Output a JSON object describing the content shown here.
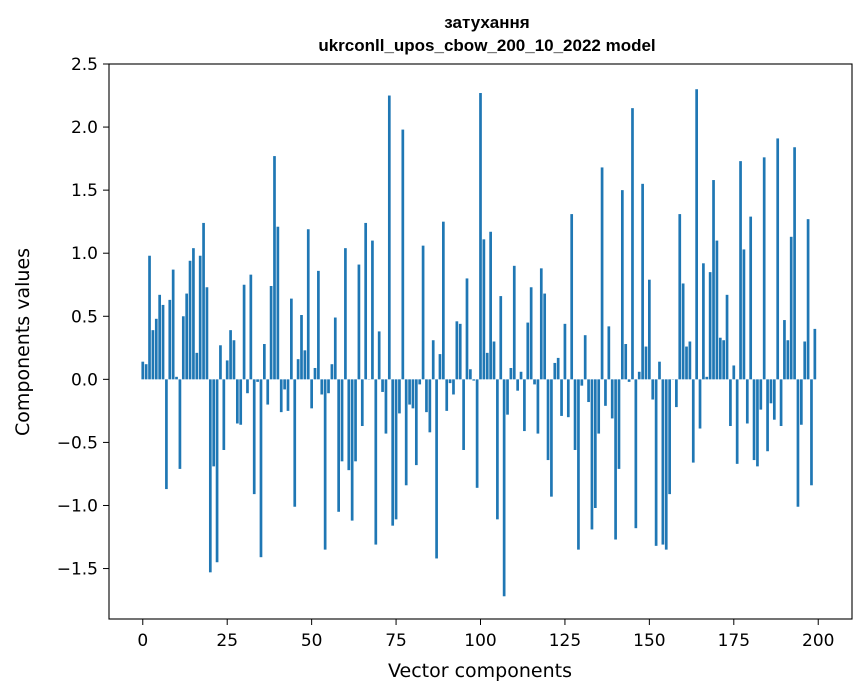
{
  "chart_data": {
    "type": "bar",
    "title": "затухання",
    "subtitle": "ukrconll_upos_cbow_200_10_2022 model",
    "xlabel": "Vector components",
    "ylabel": "Components values",
    "xlim": [
      -10,
      210
    ],
    "ylim": [
      -1.9,
      2.5
    ],
    "xticks": [
      0,
      25,
      50,
      75,
      100,
      125,
      150,
      175,
      200
    ],
    "yticks": [
      -1.5,
      -1.0,
      -0.5,
      0.0,
      0.5,
      1.0,
      1.5,
      2.0,
      2.5
    ],
    "xtick_labels": [
      "0",
      "25",
      "50",
      "75",
      "100",
      "125",
      "150",
      "175",
      "200"
    ],
    "ytick_labels": [
      "−1.5",
      "−1.0",
      "−0.5",
      "0.0",
      "0.5",
      "1.0",
      "1.5",
      "2.0",
      "2.5"
    ],
    "grid": false,
    "bar_color": "#1f77b4",
    "x": [
      0,
      1,
      2,
      3,
      4,
      5,
      6,
      7,
      8,
      9,
      10,
      11,
      12,
      13,
      14,
      15,
      16,
      17,
      18,
      19,
      20,
      21,
      22,
      23,
      24,
      25,
      26,
      27,
      28,
      29,
      30,
      31,
      32,
      33,
      34,
      35,
      36,
      37,
      38,
      39,
      40,
      41,
      42,
      43,
      44,
      45,
      46,
      47,
      48,
      49,
      50,
      51,
      52,
      53,
      54,
      55,
      56,
      57,
      58,
      59,
      60,
      61,
      62,
      63,
      64,
      65,
      66,
      67,
      68,
      69,
      70,
      71,
      72,
      73,
      74,
      75,
      76,
      77,
      78,
      79,
      80,
      81,
      82,
      83,
      84,
      85,
      86,
      87,
      88,
      89,
      90,
      91,
      92,
      93,
      94,
      95,
      96,
      97,
      98,
      99,
      100,
      101,
      102,
      103,
      104,
      105,
      106,
      107,
      108,
      109,
      110,
      111,
      112,
      113,
      114,
      115,
      116,
      117,
      118,
      119,
      120,
      121,
      122,
      123,
      124,
      125,
      126,
      127,
      128,
      129,
      130,
      131,
      132,
      133,
      134,
      135,
      136,
      137,
      138,
      139,
      140,
      141,
      142,
      143,
      144,
      145,
      146,
      147,
      148,
      149,
      150,
      151,
      152,
      153,
      154,
      155,
      156,
      157,
      158,
      159,
      160,
      161,
      162,
      163,
      164,
      165,
      166,
      167,
      168,
      169,
      170,
      171,
      172,
      173,
      174,
      175,
      176,
      177,
      178,
      179,
      180,
      181,
      182,
      183,
      184,
      185,
      186,
      187,
      188,
      189,
      190,
      191,
      192,
      193,
      194,
      195,
      196,
      197,
      198,
      199
    ],
    "values": [
      0.14,
      0.12,
      0.98,
      0.39,
      0.48,
      0.67,
      0.59,
      -0.87,
      0.63,
      0.87,
      0.02,
      -0.71,
      0.5,
      0.68,
      0.94,
      1.04,
      0.21,
      0.98,
      1.24,
      0.73,
      -1.53,
      -0.69,
      -1.45,
      0.27,
      -0.56,
      0.15,
      0.39,
      0.31,
      -0.35,
      -0.36,
      0.75,
      -0.11,
      0.83,
      -0.91,
      -0.02,
      -1.41,
      0.28,
      -0.2,
      0.74,
      1.77,
      1.21,
      -0.26,
      -0.08,
      -0.25,
      0.64,
      -1.01,
      0.16,
      0.51,
      0.23,
      1.19,
      -0.23,
      0.09,
      0.86,
      -0.12,
      -1.35,
      -0.11,
      0.12,
      0.49,
      -1.05,
      -0.65,
      1.04,
      -0.72,
      -1.12,
      -0.65,
      0.91,
      -0.37,
      1.24,
      0.0,
      1.1,
      -1.31,
      0.38,
      -0.1,
      -0.43,
      2.25,
      -1.16,
      -1.11,
      -0.27,
      1.98,
      -0.84,
      -0.2,
      -0.23,
      -0.68,
      -0.04,
      1.06,
      -0.26,
      -0.42,
      0.31,
      -1.42,
      0.2,
      1.25,
      -0.25,
      -0.03,
      -0.12,
      0.46,
      0.44,
      -0.56,
      0.8,
      0.08,
      -0.01,
      -0.86,
      2.27,
      1.11,
      0.21,
      1.17,
      0.3,
      -1.11,
      0.66,
      -1.72,
      -0.28,
      0.09,
      0.9,
      -0.09,
      0.06,
      -0.41,
      0.45,
      0.73,
      -0.04,
      -0.43,
      0.88,
      0.68,
      -0.64,
      -0.93,
      0.13,
      0.17,
      -0.29,
      0.44,
      -0.3,
      1.31,
      -0.56,
      -1.35,
      -0.05,
      0.35,
      -0.18,
      -1.19,
      -1.02,
      -0.43,
      1.68,
      -0.21,
      0.42,
      -0.31,
      -1.27,
      -0.71,
      1.5,
      0.28,
      -0.02,
      2.15,
      -1.18,
      0.06,
      1.55,
      0.26,
      0.79,
      -0.16,
      -1.32,
      0.14,
      -1.31,
      -1.35,
      -0.91,
      0.0,
      -0.22,
      1.31,
      0.76,
      0.26,
      0.3,
      -0.66,
      2.3,
      -0.39,
      0.92,
      0.02,
      0.85,
      1.58,
      1.1,
      0.33,
      0.31,
      0.67,
      -0.37,
      0.11,
      -0.67,
      1.73,
      1.03,
      -0.35,
      1.29,
      -0.64,
      -0.69,
      -0.24,
      1.76,
      -0.57,
      -0.19,
      -0.32,
      1.91,
      -0.37,
      0.47,
      0.31,
      1.13,
      1.84,
      -1.01,
      -0.36,
      0.3,
      1.27,
      -0.84,
      0.4
    ]
  }
}
